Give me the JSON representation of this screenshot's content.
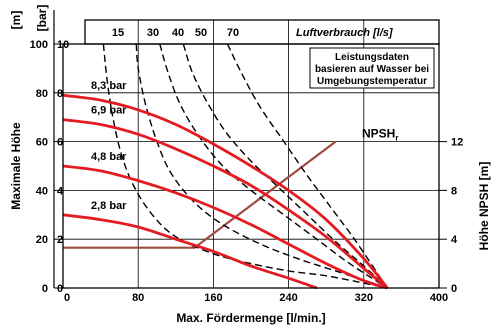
{
  "chart_data": {
    "type": "line",
    "xlabel": "Max. Fördermenge [l/min.]",
    "x_ticks": [
      0,
      80,
      160,
      240,
      320,
      400
    ],
    "xlim": [
      0,
      400
    ],
    "left_axis": {
      "label": "Maximale Höhe",
      "unit_m": "[m]",
      "unit_bar": "[bar]",
      "m_ticks": [
        0,
        20,
        40,
        60,
        80,
        100
      ],
      "bar_ticks": [
        0,
        2,
        4,
        6,
        8,
        10
      ],
      "ylim_m": [
        0,
        100
      ]
    },
    "right_axis": {
      "label": "Höhe NPSH [m]",
      "ticks": [
        0,
        4,
        8,
        12
      ],
      "ylim": [
        0,
        20
      ]
    },
    "top_axis": {
      "label": "Luftverbrauch [l/s]",
      "ticks": [
        "15",
        "30",
        "40",
        "50",
        "70"
      ]
    },
    "annotation": [
      "Leistungsdaten",
      "basieren auf Wasser bei",
      "Umgebungstemperatur"
    ],
    "npsh_label": "NPSH",
    "npsh_subscript": "r",
    "colors": {
      "pressure_curves": "#e31b23",
      "npsh": "#9c4a3c",
      "air_curves": "#000000"
    },
    "pressure_series": [
      {
        "name": "8,3 bar",
        "x": [
          0,
          40,
          80,
          120,
          160,
          200,
          240,
          280,
          320,
          345
        ],
        "y": [
          79,
          77,
          73,
          67,
          59,
          50,
          40,
          28,
          12,
          0
        ]
      },
      {
        "name": "6,9 bar",
        "x": [
          0,
          40,
          80,
          120,
          160,
          200,
          240,
          280,
          320,
          345
        ],
        "y": [
          69,
          67,
          63,
          57,
          50,
          42,
          32,
          21,
          8,
          0
        ]
      },
      {
        "name": "4,8 bar",
        "x": [
          0,
          40,
          80,
          120,
          160,
          200,
          240,
          280,
          320,
          345
        ],
        "y": [
          50,
          48,
          44,
          39,
          33,
          26,
          18,
          10,
          3,
          0
        ]
      },
      {
        "name": "2,8 bar",
        "x": [
          0,
          40,
          80,
          120,
          160,
          200,
          240,
          270
        ],
        "y": [
          30,
          28,
          25,
          20,
          15,
          9,
          4,
          0
        ]
      }
    ],
    "air_series": [
      {
        "name": "15",
        "x": [
          43,
          47,
          53,
          62,
          75,
          95,
          120,
          160,
          200,
          240,
          280,
          320,
          345
        ],
        "y": [
          100,
          85,
          70,
          55,
          42,
          30,
          21,
          14,
          10,
          7,
          5,
          2,
          0
        ]
      },
      {
        "name": "30",
        "x": [
          78,
          80,
          88,
          100,
          115,
          140,
          170,
          210,
          250,
          290,
          330,
          345
        ],
        "y": [
          100,
          90,
          75,
          60,
          47,
          35,
          26,
          18,
          12,
          7,
          2,
          0
        ]
      },
      {
        "name": "40",
        "x": [
          103,
          112,
          125,
          145,
          170,
          200,
          235,
          270,
          305,
          345
        ],
        "y": [
          100,
          88,
          75,
          62,
          50,
          40,
          30,
          20,
          10,
          0
        ]
      },
      {
        "name": "50",
        "x": [
          128,
          138,
          155,
          175,
          200,
          230,
          260,
          290,
          320,
          345
        ],
        "y": [
          100,
          88,
          75,
          63,
          52,
          41,
          30,
          19,
          9,
          0
        ]
      },
      {
        "name": "70",
        "x": [
          175,
          190,
          210,
          235,
          260,
          285,
          310,
          345
        ],
        "y": [
          100,
          88,
          74,
          60,
          46,
          33,
          20,
          0
        ]
      }
    ],
    "npsh_series": {
      "name": "NPSH",
      "x": [
        0,
        140,
        290
      ],
      "y_npsh": [
        3.3,
        3.3,
        12
      ]
    }
  }
}
